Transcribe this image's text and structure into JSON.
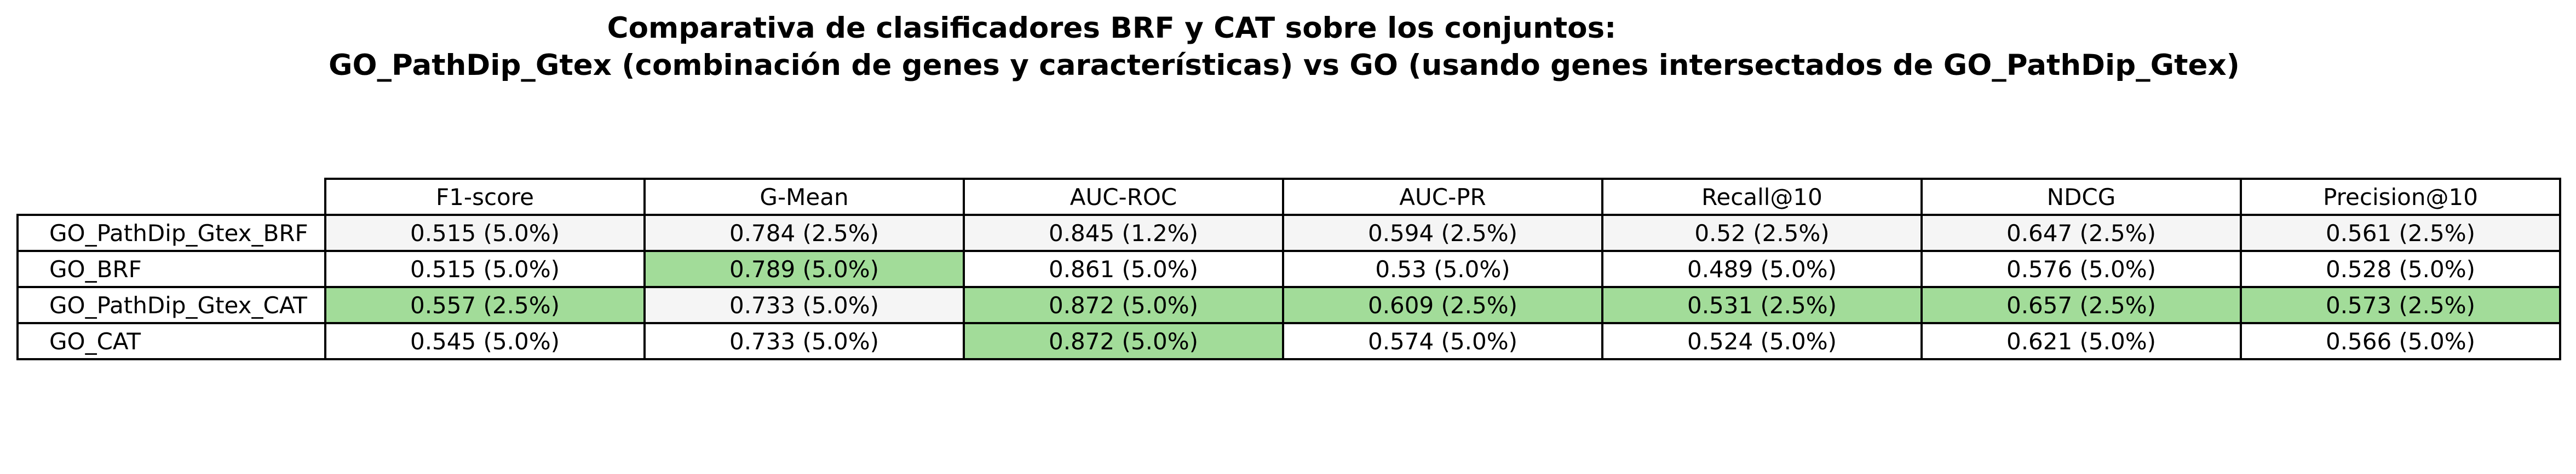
{
  "colors": {
    "highlight": "#a2dc99",
    "row_alt": "#f5f5f5",
    "border": "#000000"
  },
  "chart_data": {
    "type": "table",
    "title": "Comparativa de clasificadores BRF y CAT sobre los conjuntos:",
    "subtitle": "GO_PathDip_Gtex (combinación de genes y características) vs GO (usando genes intersectados de GO_PathDip_Gtex)",
    "columns": [
      "F1-score",
      "G-Mean",
      "AUC-ROC",
      "AUC-PR",
      "Recall@10",
      "NDCG",
      "Precision@10"
    ],
    "rows": [
      {
        "label": "GO_PathDip_Gtex_BRF",
        "cells": [
          "0.515 (5.0%)",
          "0.784 (2.5%)",
          "0.845 (1.2%)",
          "0.594 (2.5%)",
          "0.52 (2.5%)",
          "0.647 (2.5%)",
          "0.561 (2.5%)"
        ],
        "highlight": [
          false,
          false,
          false,
          false,
          false,
          false,
          false
        ]
      },
      {
        "label": "GO_BRF",
        "cells": [
          "0.515 (5.0%)",
          "0.789 (5.0%)",
          "0.861 (5.0%)",
          "0.53 (5.0%)",
          "0.489 (5.0%)",
          "0.576 (5.0%)",
          "0.528 (5.0%)"
        ],
        "highlight": [
          false,
          true,
          false,
          false,
          false,
          false,
          false
        ]
      },
      {
        "label": "GO_PathDip_Gtex_CAT",
        "cells": [
          "0.557 (2.5%)",
          "0.733 (5.0%)",
          "0.872 (5.0%)",
          "0.609 (2.5%)",
          "0.531 (2.5%)",
          "0.657 (2.5%)",
          "0.573 (2.5%)"
        ],
        "highlight": [
          true,
          false,
          true,
          true,
          true,
          true,
          true
        ]
      },
      {
        "label": "GO_CAT",
        "cells": [
          "0.545 (5.0%)",
          "0.733 (5.0%)",
          "0.872 (5.0%)",
          "0.574 (5.0%)",
          "0.524 (5.0%)",
          "0.621 (5.0%)",
          "0.566 (5.0%)"
        ],
        "highlight": [
          false,
          false,
          true,
          false,
          false,
          false,
          false
        ]
      }
    ]
  }
}
